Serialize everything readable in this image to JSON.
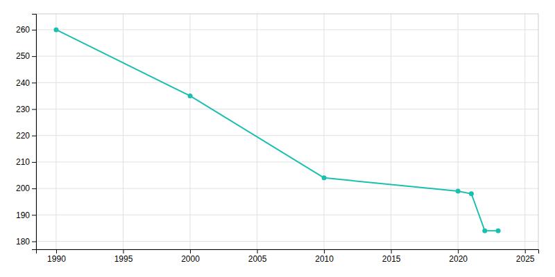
{
  "chart_data": {
    "type": "line",
    "x": [
      1990,
      2000,
      2010,
      2020,
      2021,
      2022,
      2023
    ],
    "values": [
      260,
      235,
      204,
      199,
      198,
      184,
      184
    ],
    "color": "#1ABFB0",
    "marker": "circle",
    "xlim": [
      1988.5,
      2026
    ],
    "ylim": [
      177,
      266
    ],
    "xticks": [
      1990,
      1995,
      2000,
      2005,
      2010,
      2015,
      2020,
      2025
    ],
    "yticks": [
      180,
      190,
      200,
      210,
      220,
      230,
      240,
      250,
      260
    ],
    "grid": true
  }
}
